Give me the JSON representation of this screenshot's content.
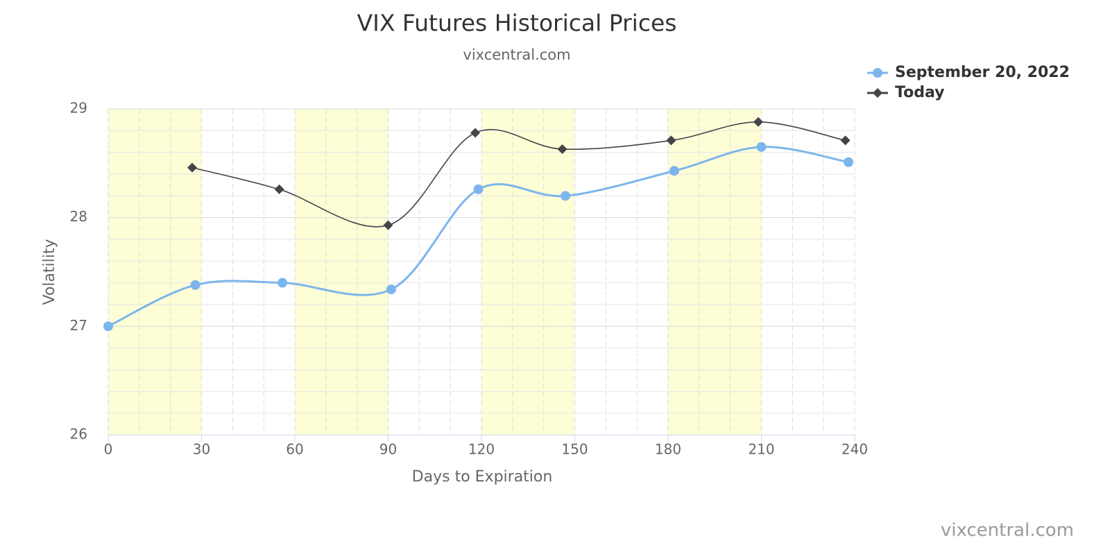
{
  "chart_data": {
    "type": "line",
    "title": "VIX Futures Historical Prices",
    "subtitle": "vixcentral.com",
    "credits": "vixcentral.com",
    "x_label": "Days to Expiration",
    "y_label": "Volatility",
    "xlim": [
      0,
      240
    ],
    "xticks": [
      0,
      30,
      60,
      90,
      120,
      150,
      180,
      210,
      240
    ],
    "ylim": [
      26,
      29
    ],
    "yticks": [
      26,
      27,
      28,
      29
    ],
    "grid": true,
    "x_minor_divisions": 3,
    "y_minor_divisions": 5,
    "smooth": true,
    "legend": "top-right",
    "plot_bands": [
      [
        0,
        30
      ],
      [
        60,
        90
      ],
      [
        120,
        150
      ],
      [
        180,
        210
      ]
    ],
    "band_color": "#fdfdd6",
    "series": [
      {
        "name": "September 20, 2022",
        "color": "#7cb5ec",
        "marker": "circle",
        "x": [
          0,
          28,
          56,
          91,
          119,
          147,
          182,
          210,
          238
        ],
        "values": [
          27.0,
          27.38,
          27.4,
          27.34,
          28.26,
          28.2,
          28.43,
          28.65,
          28.51
        ]
      },
      {
        "name": "Today",
        "color": "#434348",
        "marker": "diamond",
        "x": [
          27,
          55,
          90,
          118,
          146,
          181,
          209,
          237
        ],
        "values": [
          28.46,
          28.26,
          27.93,
          28.78,
          28.63,
          28.71,
          28.88,
          28.71
        ]
      }
    ]
  }
}
